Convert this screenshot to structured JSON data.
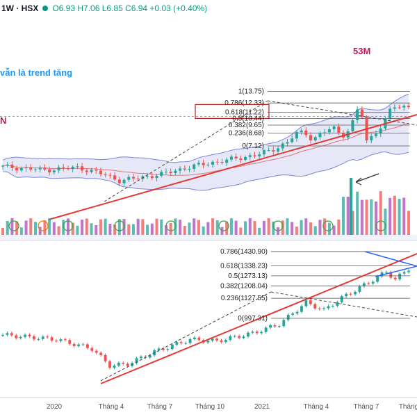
{
  "header": {
    "symbol": "1W · HSX",
    "ohlc": "O6.93 H7.06 L6.85 C6.94 +0.03 (+0.40%)",
    "dot_color": "#089981"
  },
  "chart_data": [
    {
      "type": "candlestick",
      "title": "",
      "annotations": {
        "note_text": "vẫn là trend tăng",
        "note_color": "#2196f3",
        "left_label": "N",
        "volume_label": "53M",
        "accent_color": "#c2185b"
      },
      "fib_levels": [
        {
          "label": "1(13.75)",
          "value": 13.75
        },
        {
          "label": "0.786(12.33)",
          "value": 12.33
        },
        {
          "label": "0.618(11.22)",
          "value": 11.22,
          "highlight": true
        },
        {
          "label": "0.5(10.44)",
          "value": 10.44
        },
        {
          "label": "0.382(9.65)",
          "value": 9.65
        },
        {
          "label": "0.236(8.68)",
          "value": 8.68
        },
        {
          "label": "0(7.12)",
          "value": 7.12
        }
      ],
      "ylim": [
        2.5,
        14.5
      ],
      "trend_color": "#e53935",
      "up_color": "#26a69a",
      "down_color": "#ef5350",
      "band_color": "#c7cdf0"
    },
    {
      "type": "candlestick",
      "title": "",
      "fib_levels": [
        {
          "label": "0.786(1430.90)",
          "value": 1430.9
        },
        {
          "label": "0.618(1338.23)",
          "value": 1338.23
        },
        {
          "label": "0.5(1273.13)",
          "value": 1273.13
        },
        {
          "label": "0.382(1208.04)",
          "value": 1208.04
        },
        {
          "label": "0.236(1127.55)",
          "value": 1127.55
        },
        {
          "label": "0(997.31)",
          "value": 997.31
        }
      ],
      "ylim": [
        600,
        1500
      ],
      "x_ticks": [
        "2020",
        "Tháng 4",
        "Tháng 7",
        "Tháng 10",
        "2021",
        "Tháng 4",
        "Tháng 7",
        "Tháng"
      ],
      "trend_color": "#e53935",
      "triangle_color": "#2962ff"
    }
  ]
}
